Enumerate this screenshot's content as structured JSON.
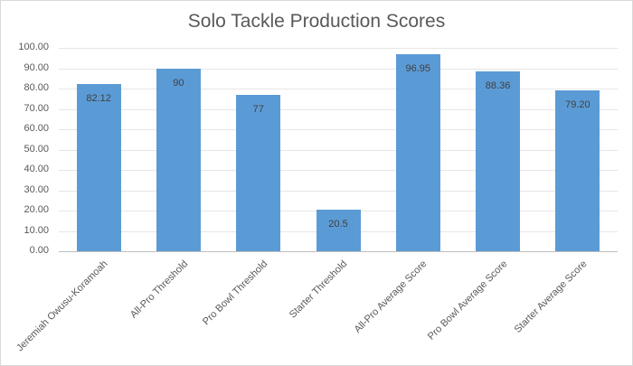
{
  "chart_data": {
    "type": "bar",
    "title": "Solo Tackle Production Scores",
    "xlabel": "",
    "ylabel": "",
    "ylim": [
      0,
      100
    ],
    "yticks": [
      "0.00",
      "10.00",
      "20.00",
      "30.00",
      "40.00",
      "50.00",
      "60.00",
      "70.00",
      "80.00",
      "90.00",
      "100.00"
    ],
    "grid": true,
    "legend": null,
    "categories": [
      "Jeremiah Owusu-Koramoah",
      "All-Pro Threshold",
      "Pro Bowl Threshold",
      "Starter Threshold",
      "All-Pro Average Score",
      "Pro Bowl Average Score",
      "Starter Average Score"
    ],
    "values": [
      82.12,
      90,
      77,
      20.5,
      96.95,
      88.36,
      79.2
    ],
    "data_labels": [
      "82.12",
      "90",
      "77",
      "20.5",
      "96.95",
      "88.36",
      "79.20"
    ],
    "bar_color": "#5b9bd5"
  }
}
